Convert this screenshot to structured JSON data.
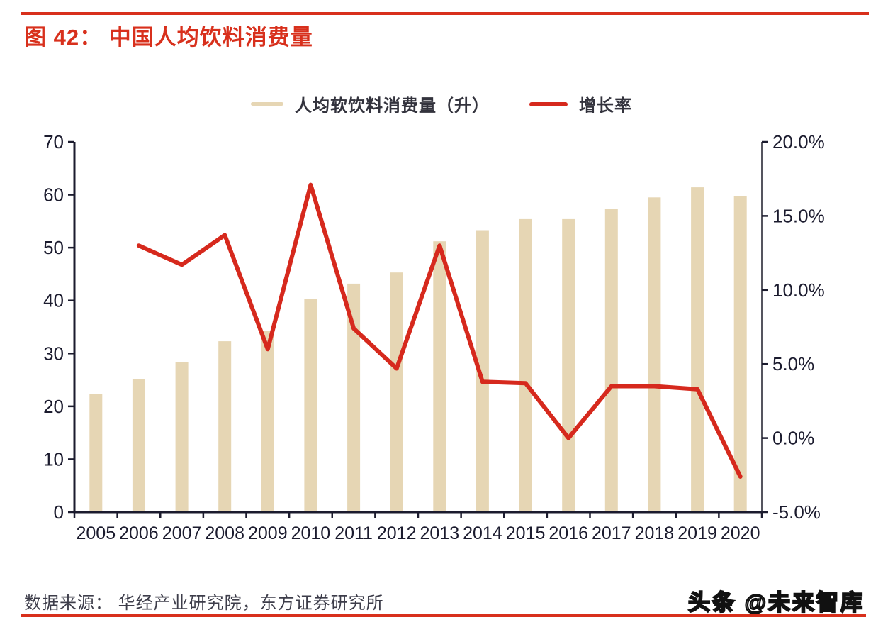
{
  "page": {
    "title": "图 42：  中国人均饮料消费量",
    "source": "数据来源：  华经产业研究院，东方证券研究所",
    "watermark": "头条 @未来智库"
  },
  "colors": {
    "accent_red": "#d8301c",
    "line_red": "#d6291d",
    "bar_fill": "#e6d6b4",
    "axis_line": "#1b1b2e",
    "right_axis_line": "#55555f",
    "axis_text": "#1b1b2e",
    "body_text": "#3d3d4a"
  },
  "chart_data": {
    "type": "bar+line",
    "title": "中国人均饮料消费量",
    "categories": [
      "2005",
      "2006",
      "2007",
      "2008",
      "2009",
      "2010",
      "2011",
      "2012",
      "2013",
      "2014",
      "2015",
      "2016",
      "2017",
      "2018",
      "2019",
      "2020"
    ],
    "series": [
      {
        "name": "人均软饮料消费量（升）",
        "type": "bar",
        "axis": "left",
        "values": [
          22.3,
          25.2,
          28.3,
          32.3,
          34.2,
          40.3,
          43.2,
          45.3,
          51.2,
          53.3,
          55.4,
          55.4,
          57.4,
          59.5,
          61.4,
          59.8
        ]
      },
      {
        "name": "增长率",
        "type": "line",
        "axis": "right",
        "values": [
          null,
          13.0,
          11.7,
          13.7,
          6.0,
          17.1,
          7.4,
          4.7,
          13.0,
          3.8,
          3.7,
          0.0,
          3.5,
          3.5,
          3.3,
          -2.6
        ]
      }
    ],
    "left_axis": {
      "min": 0,
      "max": 70,
      "ticks": [
        {
          "value": 0,
          "label": "0"
        },
        {
          "value": 10,
          "label": "10"
        },
        {
          "value": 20,
          "label": "20"
        },
        {
          "value": 30,
          "label": "30"
        },
        {
          "value": 40,
          "label": "40"
        },
        {
          "value": 50,
          "label": "50"
        },
        {
          "value": 60,
          "label": "60"
        },
        {
          "value": 70,
          "label": "70"
        }
      ]
    },
    "right_axis": {
      "min": -5,
      "max": 20,
      "ticks": [
        {
          "value": -5,
          "label": "-5.0%"
        },
        {
          "value": 0,
          "label": "0.0%"
        },
        {
          "value": 5,
          "label": "5.0%"
        },
        {
          "value": 10,
          "label": "10.0%"
        },
        {
          "value": 15,
          "label": "15.0%"
        },
        {
          "value": 20,
          "label": "20.0%"
        }
      ]
    },
    "legend_position": "top-center",
    "grid": false
  }
}
